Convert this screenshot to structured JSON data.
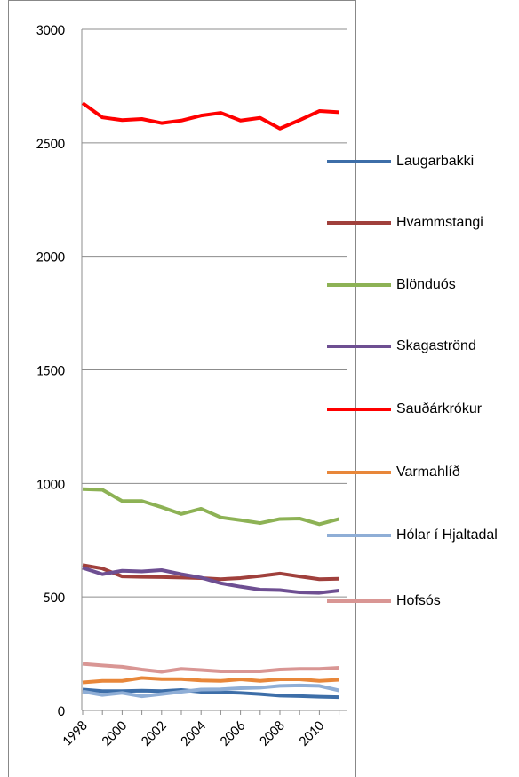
{
  "chart_data": {
    "type": "line",
    "categories": [
      "1998",
      null,
      "2000",
      null,
      "2002",
      null,
      "2004",
      null,
      "2006",
      null,
      "2008",
      null,
      "2010",
      null
    ],
    "ylim": [
      0,
      3000
    ],
    "yticks": [
      0,
      500,
      1000,
      1500,
      2000,
      2500,
      3000
    ],
    "grid": true,
    "legend": "right",
    "series": [
      {
        "name": "Laugarbakki",
        "color": "#3d6ea8",
        "values": [
          92,
          85,
          85,
          87,
          85,
          90,
          82,
          80,
          77,
          72,
          65,
          63,
          60,
          58
        ]
      },
      {
        "name": "Hvammstangi",
        "color": "#a0403c",
        "values": [
          640,
          625,
          590,
          588,
          587,
          585,
          583,
          578,
          583,
          592,
          603,
          590,
          578,
          580
        ]
      },
      {
        "name": "Blönduós",
        "color": "#8db255",
        "values": [
          975,
          972,
          922,
          922,
          895,
          865,
          888,
          850,
          838,
          825,
          843,
          845,
          820,
          843
        ]
      },
      {
        "name": "Skagaströnd",
        "color": "#6e4f92",
        "values": [
          628,
          600,
          615,
          612,
          618,
          600,
          585,
          560,
          545,
          532,
          530,
          520,
          518,
          528
        ]
      },
      {
        "name": "Sauðárkrókur",
        "color": "#ff0000",
        "values": [
          2675,
          2612,
          2600,
          2605,
          2587,
          2598,
          2620,
          2632,
          2598,
          2610,
          2563,
          2600,
          2640,
          2635
        ]
      },
      {
        "name": "Varmahlíð",
        "color": "#e8873a",
        "values": [
          123,
          130,
          130,
          143,
          138,
          138,
          132,
          130,
          137,
          130,
          137,
          137,
          130,
          135
        ]
      },
      {
        "name": "Hólar í Hjaltadal",
        "color": "#8faed6",
        "values": [
          83,
          68,
          77,
          62,
          72,
          82,
          92,
          93,
          98,
          100,
          108,
          110,
          108,
          88
        ]
      },
      {
        "name": "Hofsós",
        "color": "#d99694",
        "values": [
          205,
          198,
          192,
          180,
          170,
          183,
          178,
          172,
          172,
          172,
          180,
          183,
          183,
          188
        ]
      }
    ]
  }
}
